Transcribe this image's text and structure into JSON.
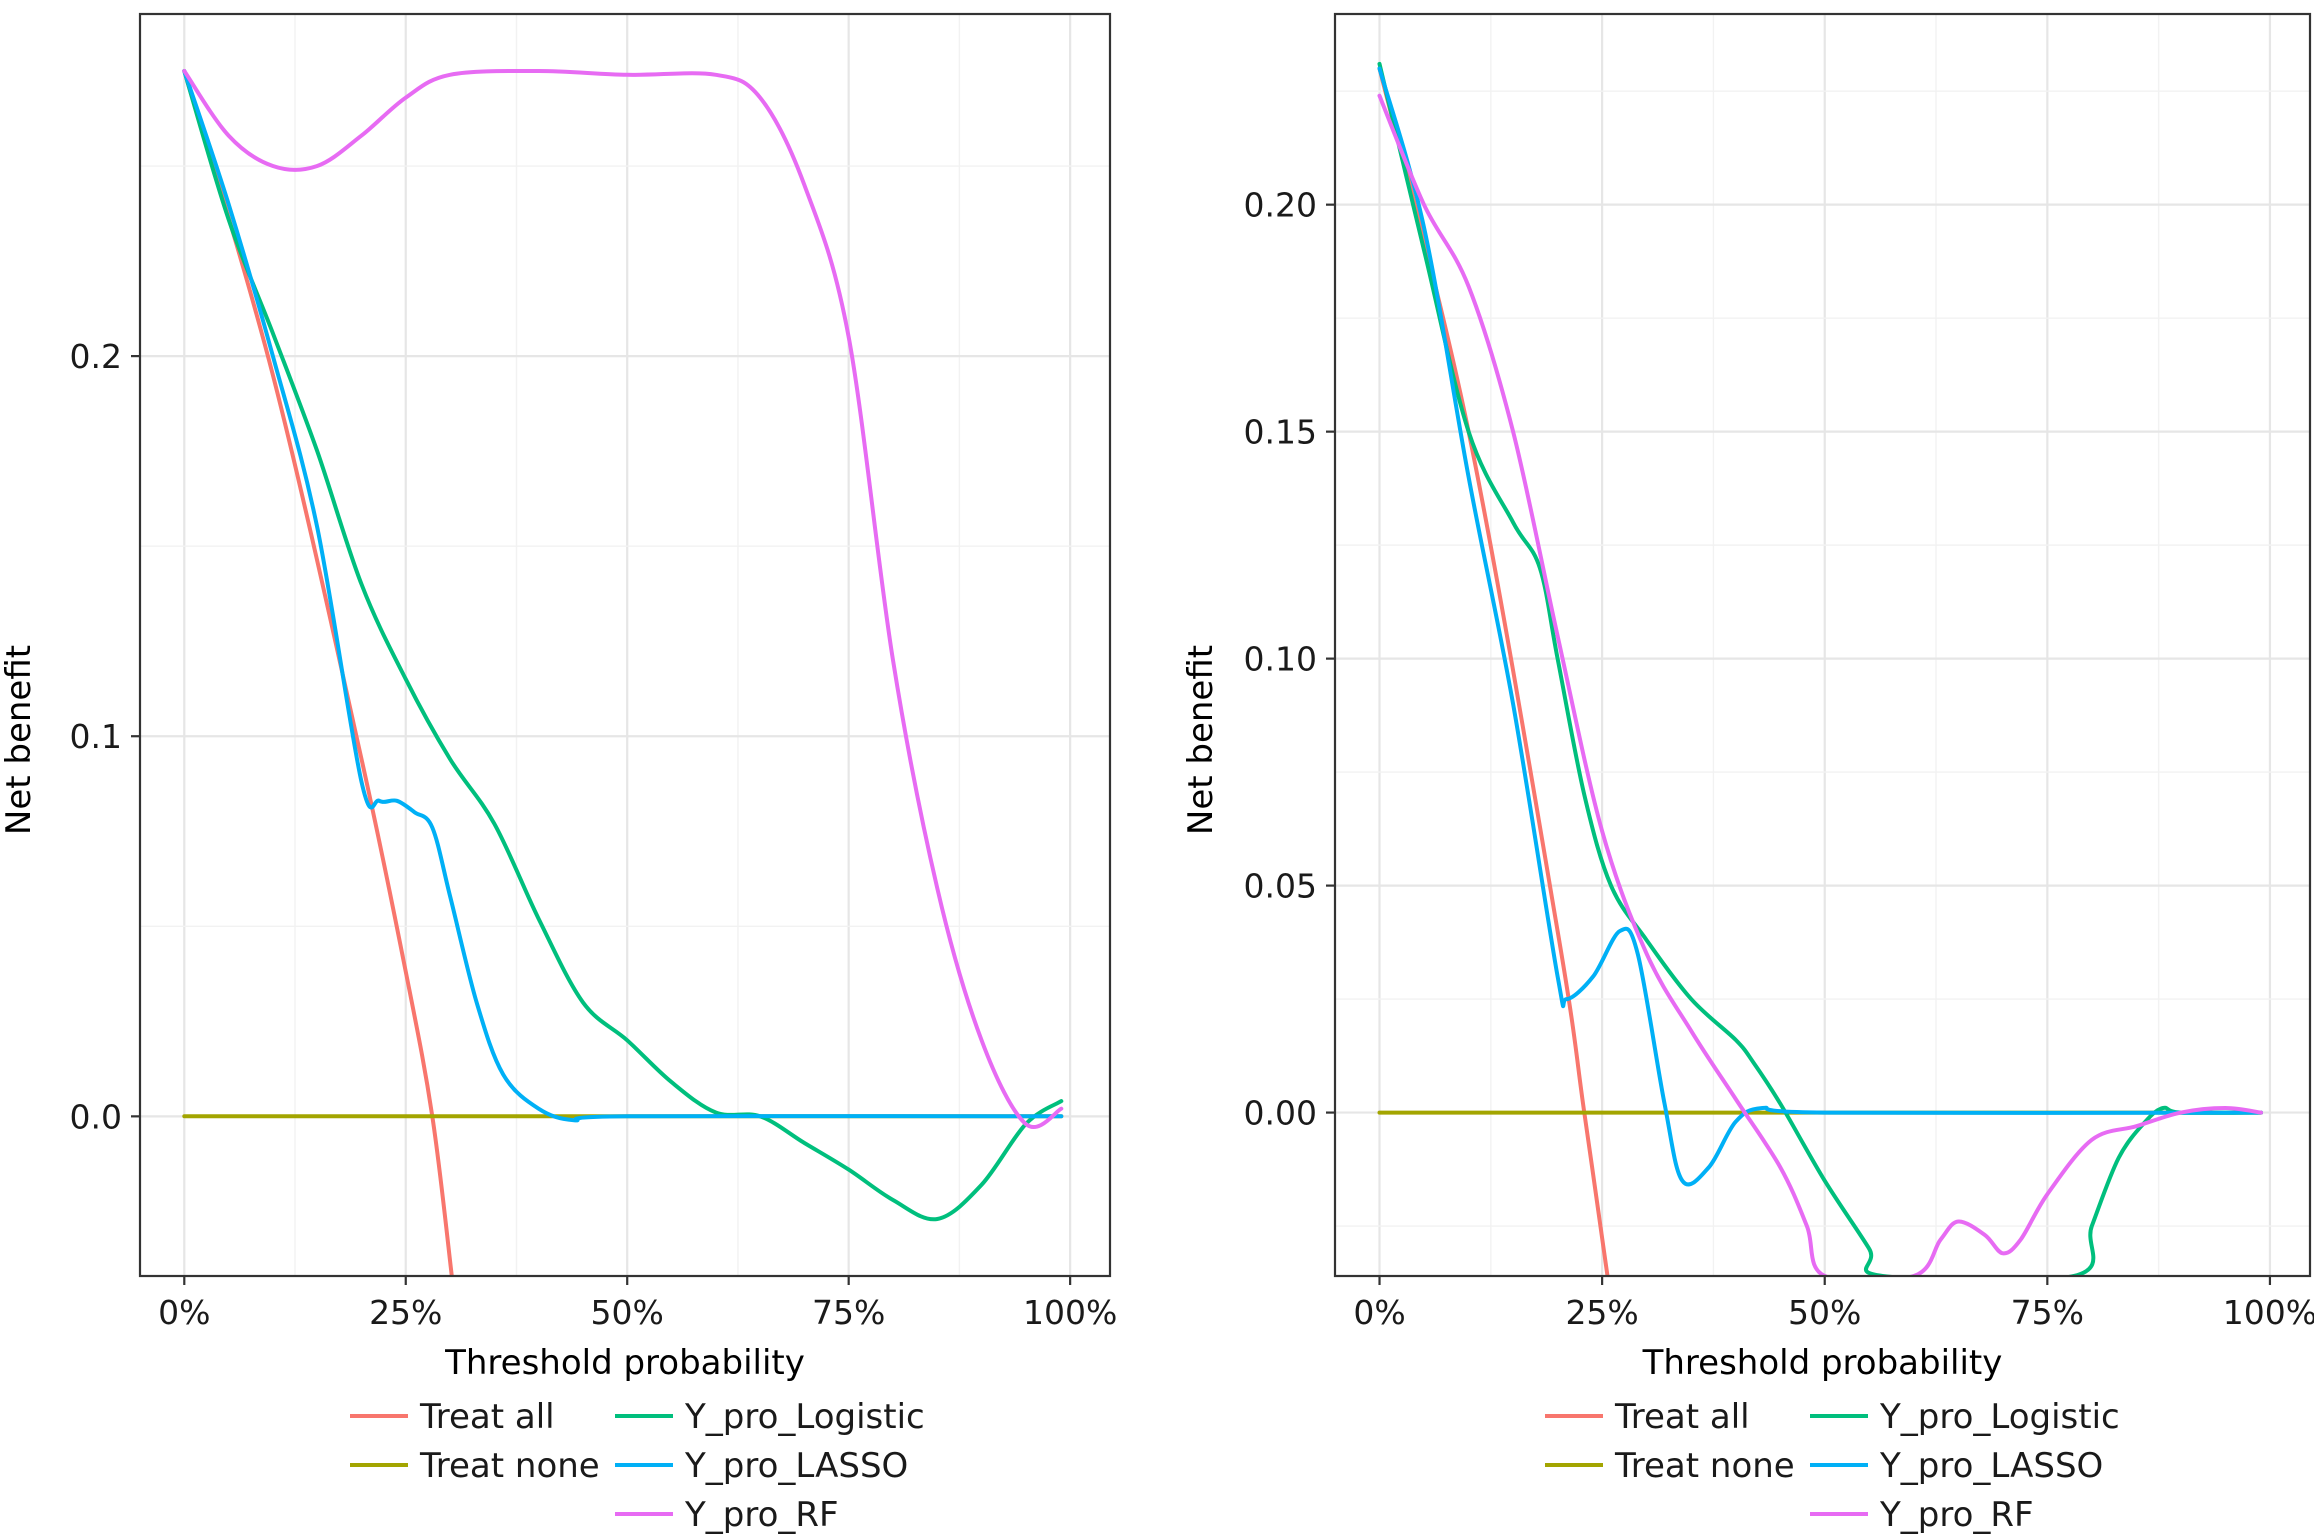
{
  "chart_data": [
    {
      "type": "line",
      "title": "",
      "xlabel": "Threshold probability",
      "ylabel": "Net benefit",
      "xlim": [
        -0.05,
        1.045
      ],
      "ylim": [
        -0.042,
        0.29
      ],
      "xticks": [
        0,
        0.25,
        0.5,
        0.75,
        1.0
      ],
      "xtick_labels": [
        "0%",
        "25%",
        "50%",
        "75%",
        "100%"
      ],
      "yticks": [
        0.0,
        0.1,
        0.2
      ],
      "ytick_labels": [
        "0.0",
        "0.1",
        "0.2"
      ],
      "grid": true,
      "legend_position": "bottom",
      "series": [
        {
          "name": "Treat all",
          "color": "#F8766D",
          "points": [
            [
              0,
              0.275
            ],
            [
              0.1,
              0.195
            ],
            [
              0.2,
              0.094
            ],
            [
              0.25,
              0.038
            ],
            [
              0.28,
              0.0
            ],
            [
              0.302,
              -0.042
            ]
          ]
        },
        {
          "name": "Treat none",
          "color": "#A3A500",
          "points": [
            [
              0,
              0
            ],
            [
              0.99,
              0
            ]
          ]
        },
        {
          "name": "Y_pro_Logistic",
          "color": "#00BF7D",
          "points": [
            [
              0,
              0.275
            ],
            [
              0.05,
              0.236
            ],
            [
              0.1,
              0.206
            ],
            [
              0.15,
              0.175
            ],
            [
              0.2,
              0.14
            ],
            [
              0.25,
              0.115
            ],
            [
              0.3,
              0.094
            ],
            [
              0.35,
              0.077
            ],
            [
              0.4,
              0.052
            ],
            [
              0.45,
              0.03
            ],
            [
              0.5,
              0.02
            ],
            [
              0.55,
              0.009
            ],
            [
              0.6,
              0.001
            ],
            [
              0.65,
              0.0
            ],
            [
              0.7,
              -0.007
            ],
            [
              0.75,
              -0.014
            ],
            [
              0.8,
              -0.022
            ],
            [
              0.85,
              -0.027
            ],
            [
              0.9,
              -0.018
            ],
            [
              0.95,
              -0.002
            ],
            [
              0.99,
              0.004
            ]
          ]
        },
        {
          "name": "Y_pro_LASSO",
          "color": "#00B0F6",
          "points": [
            [
              0,
              0.275
            ],
            [
              0.05,
              0.24
            ],
            [
              0.1,
              0.2
            ],
            [
              0.15,
              0.155
            ],
            [
              0.2,
              0.088
            ],
            [
              0.22,
              0.083
            ],
            [
              0.24,
              0.083
            ],
            [
              0.26,
              0.08
            ],
            [
              0.28,
              0.076
            ],
            [
              0.3,
              0.058
            ],
            [
              0.33,
              0.03
            ],
            [
              0.36,
              0.011
            ],
            [
              0.4,
              0.002
            ],
            [
              0.44,
              -0.001
            ],
            [
              0.5,
              0.0
            ],
            [
              0.99,
              0.0
            ]
          ]
        },
        {
          "name": "Y_pro_RF",
          "color": "#E76BF3",
          "points": [
            [
              0,
              0.275
            ],
            [
              0.05,
              0.258
            ],
            [
              0.1,
              0.25
            ],
            [
              0.15,
              0.25
            ],
            [
              0.2,
              0.258
            ],
            [
              0.25,
              0.268
            ],
            [
              0.3,
              0.274
            ],
            [
              0.4,
              0.275
            ],
            [
              0.5,
              0.274
            ],
            [
              0.6,
              0.274
            ],
            [
              0.65,
              0.268
            ],
            [
              0.7,
              0.245
            ],
            [
              0.75,
              0.205
            ],
            [
              0.8,
              0.12
            ],
            [
              0.85,
              0.06
            ],
            [
              0.9,
              0.02
            ],
            [
              0.95,
              -0.002
            ],
            [
              0.99,
              0.002
            ]
          ]
        }
      ]
    },
    {
      "type": "line",
      "title": "",
      "xlabel": "Threshold probability",
      "ylabel": "Net benefit",
      "xlim": [
        -0.05,
        1.045
      ],
      "ylim": [
        -0.036,
        0.242
      ],
      "xticks": [
        0,
        0.25,
        0.5,
        0.75,
        1.0
      ],
      "xtick_labels": [
        "0%",
        "25%",
        "50%",
        "75%",
        "100%"
      ],
      "yticks": [
        0.0,
        0.05,
        0.1,
        0.15,
        0.2
      ],
      "ytick_labels": [
        "0.00",
        "0.05",
        "0.10",
        "0.15",
        "0.20"
      ],
      "grid": true,
      "legend_position": "bottom",
      "series": [
        {
          "name": "Treat all",
          "color": "#F8766D",
          "points": [
            [
              0,
              0.23
            ],
            [
              0.1,
              0.15
            ],
            [
              0.2,
              0.04
            ],
            [
              0.23,
              0.0
            ],
            [
              0.256,
              -0.036
            ]
          ]
        },
        {
          "name": "Treat none",
          "color": "#A3A500",
          "points": [
            [
              0,
              0
            ],
            [
              0.99,
              0
            ]
          ]
        },
        {
          "name": "Y_pro_Logistic",
          "color": "#00BF7D",
          "points": [
            [
              0,
              0.231
            ],
            [
              0.05,
              0.19
            ],
            [
              0.1,
              0.15
            ],
            [
              0.15,
              0.13
            ],
            [
              0.18,
              0.12
            ],
            [
              0.2,
              0.1
            ],
            [
              0.23,
              0.07
            ],
            [
              0.26,
              0.05
            ],
            [
              0.3,
              0.038
            ],
            [
              0.35,
              0.025
            ],
            [
              0.4,
              0.016
            ],
            [
              0.42,
              0.011
            ],
            [
              0.45,
              0.002
            ],
            [
              0.5,
              -0.015
            ],
            [
              0.55,
              -0.03
            ],
            [
              0.565,
              -0.036
            ],
            [
              0.78,
              -0.036
            ],
            [
              0.8,
              -0.025
            ],
            [
              0.83,
              -0.01
            ],
            [
              0.86,
              -0.002
            ],
            [
              0.88,
              0.001
            ],
            [
              0.9,
              0.0
            ],
            [
              0.99,
              0.0
            ]
          ]
        },
        {
          "name": "Y_pro_LASSO",
          "color": "#00B0F6",
          "points": [
            [
              0,
              0.23
            ],
            [
              0.05,
              0.195
            ],
            [
              0.1,
              0.14
            ],
            [
              0.15,
              0.09
            ],
            [
              0.2,
              0.03
            ],
            [
              0.21,
              0.025
            ],
            [
              0.24,
              0.03
            ],
            [
              0.27,
              0.04
            ],
            [
              0.29,
              0.035
            ],
            [
              0.32,
              0.002
            ],
            [
              0.34,
              -0.015
            ],
            [
              0.37,
              -0.012
            ],
            [
              0.4,
              -0.002
            ],
            [
              0.43,
              0.001
            ],
            [
              0.5,
              0.0
            ],
            [
              0.99,
              0.0
            ]
          ]
        },
        {
          "name": "Y_pro_RF",
          "color": "#E76BF3",
          "points": [
            [
              0,
              0.224
            ],
            [
              0.05,
              0.2
            ],
            [
              0.1,
              0.182
            ],
            [
              0.15,
              0.15
            ],
            [
              0.2,
              0.105
            ],
            [
              0.25,
              0.062
            ],
            [
              0.3,
              0.035
            ],
            [
              0.35,
              0.018
            ],
            [
              0.4,
              0.003
            ],
            [
              0.45,
              -0.012
            ],
            [
              0.48,
              -0.025
            ],
            [
              0.5,
              -0.036
            ],
            [
              0.6,
              -0.036
            ],
            [
              0.63,
              -0.028
            ],
            [
              0.65,
              -0.024
            ],
            [
              0.68,
              -0.027
            ],
            [
              0.7,
              -0.031
            ],
            [
              0.72,
              -0.028
            ],
            [
              0.75,
              -0.018
            ],
            [
              0.8,
              -0.006
            ],
            [
              0.85,
              -0.003
            ],
            [
              0.9,
              0.0
            ],
            [
              0.95,
              0.001
            ],
            [
              0.99,
              0.0
            ]
          ]
        }
      ]
    }
  ]
}
